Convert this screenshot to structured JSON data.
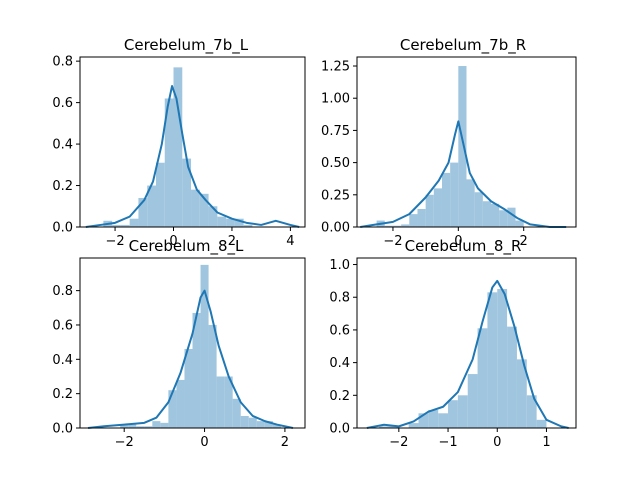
{
  "chart_data": [
    {
      "type": "histogram+kde",
      "title": "Cerebelum_7b_L",
      "xlim": [
        -3.2,
        4.5
      ],
      "ylim": [
        0,
        0.82
      ],
      "xticks": [
        -2,
        0,
        2,
        4
      ],
      "yticks": [
        0.0,
        0.2,
        0.4,
        0.6,
        0.8
      ],
      "ytick_labels": [
        "0.0",
        "0.2",
        "0.4",
        "0.6",
        "0.8"
      ],
      "bars": [
        {
          "x0": -2.4,
          "x1": -2.1,
          "y": 0.03
        },
        {
          "x0": -2.1,
          "x1": -1.8,
          "y": 0.01
        },
        {
          "x0": -1.8,
          "x1": -1.5,
          "y": 0.01
        },
        {
          "x0": -1.5,
          "x1": -1.2,
          "y": 0.04
        },
        {
          "x0": -1.2,
          "x1": -0.9,
          "y": 0.14
        },
        {
          "x0": -0.9,
          "x1": -0.6,
          "y": 0.2
        },
        {
          "x0": -0.6,
          "x1": -0.3,
          "y": 0.31
        },
        {
          "x0": -0.3,
          "x1": 0.0,
          "y": 0.62
        },
        {
          "x0": 0.0,
          "x1": 0.3,
          "y": 0.77
        },
        {
          "x0": 0.3,
          "x1": 0.6,
          "y": 0.33
        },
        {
          "x0": 0.6,
          "x1": 0.9,
          "y": 0.18
        },
        {
          "x0": 0.9,
          "x1": 1.2,
          "y": 0.16
        },
        {
          "x0": 1.2,
          "x1": 1.5,
          "y": 0.1
        },
        {
          "x0": 1.5,
          "x1": 1.8,
          "y": 0.05
        },
        {
          "x0": 1.8,
          "x1": 2.1,
          "y": 0.04
        },
        {
          "x0": 2.1,
          "x1": 2.4,
          "y": 0.04
        },
        {
          "x0": 2.4,
          "x1": 2.7,
          "y": 0.01
        }
      ],
      "kde": [
        [
          -3.0,
          0.0
        ],
        [
          -2.5,
          0.01
        ],
        [
          -2.0,
          0.02
        ],
        [
          -1.5,
          0.05
        ],
        [
          -1.0,
          0.13
        ],
        [
          -0.7,
          0.22
        ],
        [
          -0.4,
          0.4
        ],
        [
          -0.2,
          0.58
        ],
        [
          -0.05,
          0.68
        ],
        [
          0.1,
          0.62
        ],
        [
          0.3,
          0.45
        ],
        [
          0.5,
          0.29
        ],
        [
          0.8,
          0.18
        ],
        [
          1.1,
          0.13
        ],
        [
          1.5,
          0.07
        ],
        [
          2.0,
          0.04
        ],
        [
          2.5,
          0.02
        ],
        [
          3.0,
          0.01
        ],
        [
          3.5,
          0.03
        ],
        [
          4.0,
          0.01
        ],
        [
          4.3,
          0.0
        ]
      ]
    },
    {
      "type": "histogram+kde",
      "title": "Cerebelum_7b_R",
      "xlim": [
        -3.1,
        3.6
      ],
      "ylim": [
        0,
        1.32
      ],
      "xticks": [
        -2,
        0,
        2
      ],
      "yticks": [
        0.0,
        0.25,
        0.5,
        0.75,
        1.0,
        1.25
      ],
      "ytick_labels": [
        "0.00",
        "0.25",
        "0.50",
        "0.75",
        "1.00",
        "1.25"
      ],
      "bars": [
        {
          "x0": -2.5,
          "x1": -2.25,
          "y": 0.05
        },
        {
          "x0": -2.25,
          "x1": -2.0,
          "y": 0.01
        },
        {
          "x0": -2.0,
          "x1": -1.75,
          "y": 0.01
        },
        {
          "x0": -1.75,
          "x1": -1.5,
          "y": 0.02
        },
        {
          "x0": -1.5,
          "x1": -1.25,
          "y": 0.1
        },
        {
          "x0": -1.25,
          "x1": -1.0,
          "y": 0.14
        },
        {
          "x0": -1.0,
          "x1": -0.75,
          "y": 0.25
        },
        {
          "x0": -0.75,
          "x1": -0.5,
          "y": 0.3
        },
        {
          "x0": -0.5,
          "x1": -0.25,
          "y": 0.42
        },
        {
          "x0": -0.25,
          "x1": 0.0,
          "y": 0.5
        },
        {
          "x0": 0.0,
          "x1": 0.25,
          "y": 1.25
        },
        {
          "x0": 0.25,
          "x1": 0.5,
          "y": 0.37
        },
        {
          "x0": 0.5,
          "x1": 0.75,
          "y": 0.27
        },
        {
          "x0": 0.75,
          "x1": 1.0,
          "y": 0.2
        },
        {
          "x0": 1.0,
          "x1": 1.25,
          "y": 0.18
        },
        {
          "x0": 1.25,
          "x1": 1.5,
          "y": 0.13
        },
        {
          "x0": 1.5,
          "x1": 1.75,
          "y": 0.15
        },
        {
          "x0": 1.75,
          "x1": 2.0,
          "y": 0.05
        }
      ],
      "kde": [
        [
          -3.0,
          0.0
        ],
        [
          -2.5,
          0.02
        ],
        [
          -2.0,
          0.04
        ],
        [
          -1.5,
          0.1
        ],
        [
          -1.0,
          0.23
        ],
        [
          -0.6,
          0.36
        ],
        [
          -0.3,
          0.5
        ],
        [
          -0.1,
          0.72
        ],
        [
          0.0,
          0.82
        ],
        [
          0.15,
          0.65
        ],
        [
          0.35,
          0.42
        ],
        [
          0.6,
          0.3
        ],
        [
          1.0,
          0.2
        ],
        [
          1.4,
          0.14
        ],
        [
          1.8,
          0.07
        ],
        [
          2.2,
          0.02
        ],
        [
          2.8,
          0.0
        ],
        [
          3.3,
          0.0
        ]
      ]
    },
    {
      "type": "histogram+kde",
      "title": "Cerebelum_8_L",
      "xlim": [
        -3.1,
        2.5
      ],
      "ylim": [
        0,
        0.99
      ],
      "xticks": [
        -2,
        0,
        2
      ],
      "yticks": [
        0.0,
        0.2,
        0.4,
        0.6,
        0.8
      ],
      "ytick_labels": [
        "0.0",
        "0.2",
        "0.4",
        "0.6",
        "0.8"
      ],
      "bars": [
        {
          "x0": -2.1,
          "x1": -1.9,
          "y": 0.02
        },
        {
          "x0": -1.9,
          "x1": -1.7,
          "y": 0.02
        },
        {
          "x0": -1.7,
          "x1": -1.5,
          "y": 0.01
        },
        {
          "x0": -1.5,
          "x1": -1.3,
          "y": 0.01
        },
        {
          "x0": -1.3,
          "x1": -1.1,
          "y": 0.04
        },
        {
          "x0": -1.1,
          "x1": -0.9,
          "y": 0.03
        },
        {
          "x0": -0.9,
          "x1": -0.7,
          "y": 0.22
        },
        {
          "x0": -0.7,
          "x1": -0.5,
          "y": 0.28
        },
        {
          "x0": -0.5,
          "x1": -0.3,
          "y": 0.46
        },
        {
          "x0": -0.3,
          "x1": -0.1,
          "y": 0.67
        },
        {
          "x0": -0.1,
          "x1": 0.1,
          "y": 0.95
        },
        {
          "x0": 0.1,
          "x1": 0.3,
          "y": 0.6
        },
        {
          "x0": 0.3,
          "x1": 0.5,
          "y": 0.3
        },
        {
          "x0": 0.5,
          "x1": 0.7,
          "y": 0.3
        },
        {
          "x0": 0.7,
          "x1": 0.9,
          "y": 0.17
        },
        {
          "x0": 0.9,
          "x1": 1.1,
          "y": 0.07
        },
        {
          "x0": 1.1,
          "x1": 1.3,
          "y": 0.06
        },
        {
          "x0": 1.3,
          "x1": 1.5,
          "y": 0.04
        },
        {
          "x0": 1.5,
          "x1": 1.7,
          "y": 0.04
        },
        {
          "x0": 1.7,
          "x1": 1.9,
          "y": 0.02
        }
      ],
      "kde": [
        [
          -2.9,
          0.0
        ],
        [
          -2.5,
          0.01
        ],
        [
          -2.0,
          0.02
        ],
        [
          -1.5,
          0.03
        ],
        [
          -1.2,
          0.06
        ],
        [
          -0.9,
          0.15
        ],
        [
          -0.6,
          0.32
        ],
        [
          -0.3,
          0.55
        ],
        [
          -0.1,
          0.76
        ],
        [
          0.0,
          0.8
        ],
        [
          0.15,
          0.68
        ],
        [
          0.35,
          0.48
        ],
        [
          0.6,
          0.3
        ],
        [
          0.9,
          0.15
        ],
        [
          1.2,
          0.07
        ],
        [
          1.5,
          0.04
        ],
        [
          1.8,
          0.02
        ],
        [
          2.2,
          0.0
        ]
      ]
    },
    {
      "type": "histogram+kde",
      "title": "Cerebelum_8_R",
      "xlim": [
        -2.85,
        1.6
      ],
      "ylim": [
        0,
        1.04
      ],
      "xticks": [
        -2,
        -1,
        0,
        1
      ],
      "yticks": [
        0.0,
        0.2,
        0.4,
        0.6,
        0.8,
        1.0
      ],
      "ytick_labels": [
        "0.0",
        "0.2",
        "0.4",
        "0.6",
        "0.8",
        "1.0"
      ],
      "bars": [
        {
          "x0": -2.4,
          "x1": -2.2,
          "y": 0.01
        },
        {
          "x0": -2.2,
          "x1": -2.0,
          "y": 0.01
        },
        {
          "x0": -2.0,
          "x1": -1.8,
          "y": 0.0
        },
        {
          "x0": -1.8,
          "x1": -1.6,
          "y": 0.03
        },
        {
          "x0": -1.6,
          "x1": -1.4,
          "y": 0.09
        },
        {
          "x0": -1.4,
          "x1": -1.2,
          "y": 0.11
        },
        {
          "x0": -1.2,
          "x1": -1.0,
          "y": 0.09
        },
        {
          "x0": -1.0,
          "x1": -0.8,
          "y": 0.17
        },
        {
          "x0": -0.8,
          "x1": -0.6,
          "y": 0.2
        },
        {
          "x0": -0.6,
          "x1": -0.4,
          "y": 0.33
        },
        {
          "x0": -0.4,
          "x1": -0.2,
          "y": 0.61
        },
        {
          "x0": -0.2,
          "x1": 0.0,
          "y": 0.83
        },
        {
          "x0": 0.0,
          "x1": 0.2,
          "y": 0.85
        },
        {
          "x0": 0.2,
          "x1": 0.4,
          "y": 0.62
        },
        {
          "x0": 0.4,
          "x1": 0.6,
          "y": 0.42
        },
        {
          "x0": 0.6,
          "x1": 0.8,
          "y": 0.2
        },
        {
          "x0": 0.8,
          "x1": 1.0,
          "y": 0.05
        }
      ],
      "kde": [
        [
          -2.65,
          0.0
        ],
        [
          -2.3,
          0.02
        ],
        [
          -2.0,
          0.01
        ],
        [
          -1.7,
          0.04
        ],
        [
          -1.4,
          0.1
        ],
        [
          -1.1,
          0.13
        ],
        [
          -0.8,
          0.22
        ],
        [
          -0.5,
          0.42
        ],
        [
          -0.3,
          0.65
        ],
        [
          -0.1,
          0.86
        ],
        [
          0.0,
          0.9
        ],
        [
          0.15,
          0.82
        ],
        [
          0.35,
          0.62
        ],
        [
          0.55,
          0.38
        ],
        [
          0.75,
          0.18
        ],
        [
          1.0,
          0.05
        ],
        [
          1.3,
          0.01
        ],
        [
          1.45,
          0.0
        ]
      ]
    }
  ],
  "colors": {
    "bar_fill": "#9fc5df",
    "kde_line": "#1f77b4",
    "axes": "#000000"
  }
}
